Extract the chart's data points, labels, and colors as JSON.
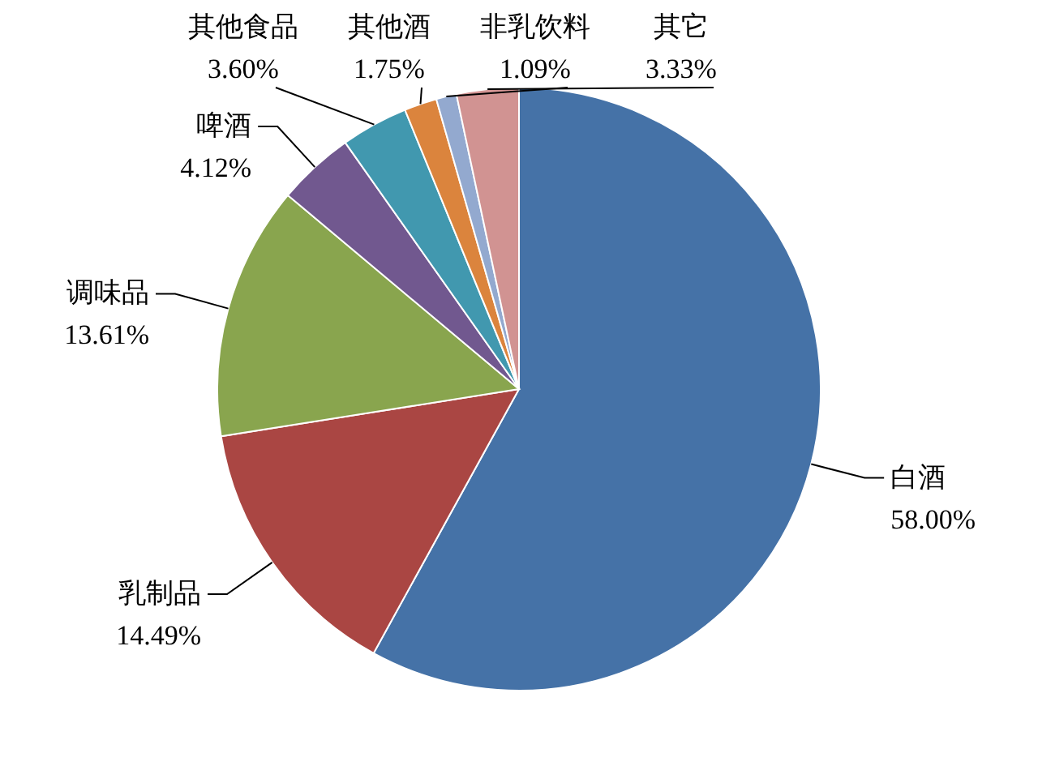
{
  "chart_data": {
    "type": "pie",
    "categories": [
      "白酒",
      "乳制品",
      "调味品",
      "啤酒",
      "其他食品",
      "其他酒",
      "非乳饮料",
      "其它"
    ],
    "values": [
      58.0,
      14.49,
      13.61,
      4.12,
      3.6,
      1.75,
      1.09,
      3.33
    ],
    "value_labels": [
      "58.00%",
      "14.49%",
      "13.61%",
      "4.12%",
      "3.60%",
      "1.75%",
      "1.09%",
      "3.33%"
    ],
    "colors": [
      "#4572a7",
      "#aa4643",
      "#89a54e",
      "#71588f",
      "#4198af",
      "#db843d",
      "#93a9cf",
      "#d19392"
    ]
  }
}
